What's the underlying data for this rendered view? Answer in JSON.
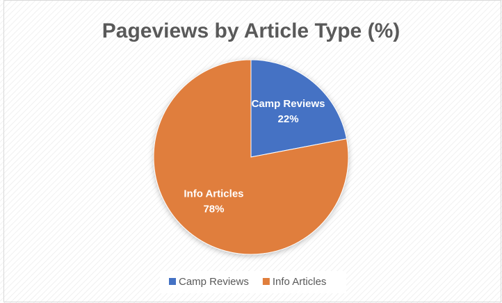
{
  "chart_data": {
    "type": "pie",
    "title": "Pageviews by Article Type (%)",
    "categories": [
      "Camp Reviews",
      "Info Articles"
    ],
    "values": [
      22,
      78
    ],
    "value_labels": [
      "22%",
      "78%"
    ],
    "colors": [
      "#4472c4",
      "#e07e3c"
    ],
    "legend": "bottom"
  }
}
